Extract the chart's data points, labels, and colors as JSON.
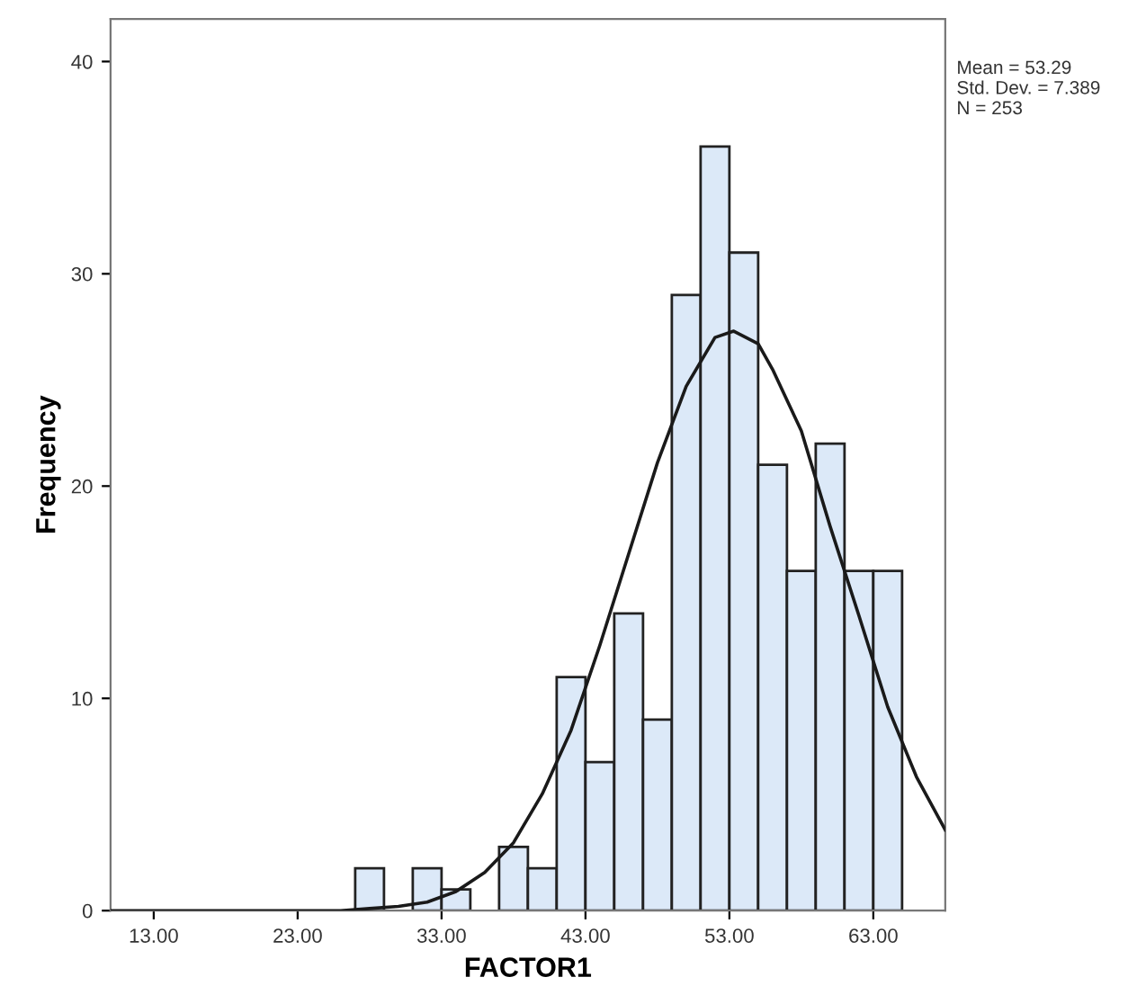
{
  "chart_data": {
    "type": "histogram",
    "xlabel": "FACTOR1",
    "ylabel": "Frequency",
    "bins": [
      27,
      29,
      31,
      33,
      35,
      37,
      39,
      41,
      43,
      45,
      47,
      49,
      51,
      53,
      55,
      57,
      59,
      61,
      63,
      65
    ],
    "values": [
      2,
      0,
      2,
      1,
      0,
      3,
      2,
      11,
      7,
      14,
      9,
      29,
      36,
      31,
      21,
      16,
      22,
      16,
      16
    ],
    "color": "#dce9f8",
    "series": [
      {
        "type": "line",
        "color": "#1a1a1a",
        "x": [
          10,
          18,
          22,
          26,
          28,
          30,
          32,
          34,
          36,
          38,
          40,
          42,
          44,
          46,
          48,
          50,
          52,
          53.3,
          55,
          56,
          58,
          60,
          62,
          64,
          66,
          68
        ],
        "values": [
          0,
          0,
          0,
          0,
          0.1,
          0.2,
          0.4,
          0.9,
          1.8,
          3.2,
          5.5,
          8.5,
          12.5,
          16.8,
          21.1,
          24.7,
          27,
          27.3,
          26.7,
          25.5,
          22.6,
          18.1,
          13.9,
          9.6,
          6.3,
          3.8
        ]
      }
    ],
    "xlim": [
      10,
      68
    ],
    "ylim": [
      0,
      42
    ],
    "xticks": [
      {
        "value": 13,
        "label": "13.00"
      },
      {
        "value": 23,
        "label": "23.00"
      },
      {
        "value": 33,
        "label": "33.00"
      },
      {
        "value": 43,
        "label": "43.00"
      },
      {
        "value": 53,
        "label": "53.00"
      },
      {
        "value": 63,
        "label": "63.00"
      }
    ],
    "yticks": [
      0,
      10,
      20,
      30,
      40
    ],
    "annotations": [
      "Mean = 53.29\nStd. Dev. = 7.389\nN = 253"
    ],
    "grid": false,
    "legend": false
  }
}
